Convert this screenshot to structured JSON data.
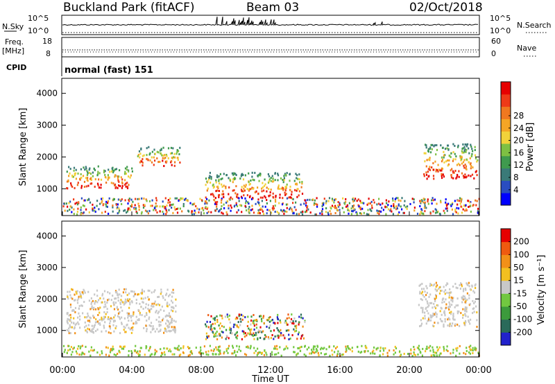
{
  "header": {
    "station": "Buckland Park (fitACF)",
    "beam": "Beam 03",
    "date": "02/Oct/2018"
  },
  "params": {
    "nsky_label": "N.Sky",
    "nsearch_label": "N.Search",
    "nsky_ticks": [
      "10^5",
      "10^0"
    ],
    "nsearch_ticks": [
      "10^5",
      "10^0"
    ],
    "freq_label": "Freq.",
    "freq_unit": "[MHz]",
    "freq_ticks": [
      "18",
      "8"
    ],
    "nave_label": "Nave",
    "nave_ticks": [
      "60",
      "0"
    ],
    "cpid_label": "CPID",
    "cpid_text": "normal (fast) 151"
  },
  "chart_data": [
    {
      "type": "heatmap",
      "name": "power",
      "ylabel": "Slant Range [km]",
      "yticks": [
        1000,
        2000,
        3000,
        4000
      ],
      "ylim": [
        180,
        4450
      ],
      "xlim": [
        "00:00",
        "24:00"
      ],
      "colorbar": {
        "label": "Power [dB]",
        "ticks": [
          4,
          8,
          12,
          16,
          20,
          24,
          28
        ],
        "colors": [
          "#0000ff",
          "#2a4dc0",
          "#3a7a78",
          "#3f9a4e",
          "#7ec043",
          "#f2d23a",
          "#f5a525",
          "#f07820",
          "#ee3a18",
          "#e60000"
        ]
      },
      "regions": [
        {
          "t0": 0.2,
          "t1": 4.0,
          "r0": 1000,
          "r1": 1700,
          "level": "high"
        },
        {
          "t0": 4.3,
          "t1": 6.8,
          "r0": 1700,
          "r1": 2300,
          "level": "high"
        },
        {
          "t0": 8.2,
          "t1": 13.8,
          "r0": 700,
          "r1": 1500,
          "level": "high"
        },
        {
          "t0": 20.8,
          "t1": 23.9,
          "r0": 1300,
          "r1": 2400,
          "level": "high"
        },
        {
          "t0": 0.0,
          "t1": 24.0,
          "r0": 180,
          "r1": 700,
          "level": "mixed"
        }
      ]
    },
    {
      "type": "heatmap",
      "name": "velocity",
      "ylabel": "Slant Range [km]",
      "yticks": [
        1000,
        2000,
        3000,
        4000
      ],
      "ylim": [
        180,
        4450
      ],
      "xticks": [
        "00:00",
        "04:00",
        "08:00",
        "12:00",
        "16:00",
        "20:00",
        "00:00"
      ],
      "xlabel": "Time UT",
      "colorbar": {
        "label": "Velocity [m s⁻¹]",
        "ticks": [
          200,
          100,
          50,
          15,
          -15,
          -50,
          -100,
          -200
        ],
        "colors": [
          "#2222cc",
          "#2a6a5a",
          "#3c9a3c",
          "#72c840",
          "#c8c8c8",
          "#f2c020",
          "#f29018",
          "#ef5a10",
          "#e60000"
        ]
      },
      "regions": [
        {
          "t0": 0.2,
          "t1": 6.5,
          "r0": 900,
          "r1": 2300,
          "level": "grey"
        },
        {
          "t0": 8.2,
          "t1": 14.0,
          "r0": 700,
          "r1": 1500,
          "level": "mixed"
        },
        {
          "t0": 20.5,
          "t1": 23.9,
          "r0": 1100,
          "r1": 2500,
          "level": "grey"
        },
        {
          "t0": 0.0,
          "t1": 24.0,
          "r0": 180,
          "r1": 500,
          "level": "green"
        }
      ]
    }
  ]
}
